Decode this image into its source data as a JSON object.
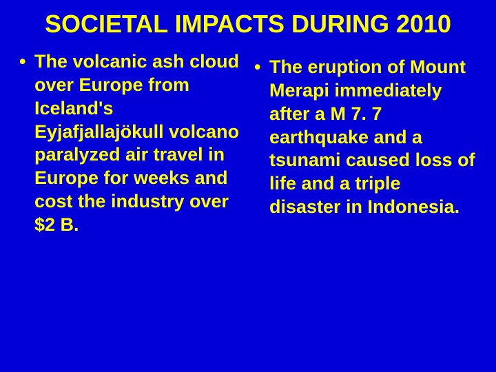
{
  "background_color": "#0000d6",
  "text_color": "#ffff00",
  "title_fontsize": 36,
  "body_fontsize": 27,
  "font_family": "Arial",
  "font_weight": "bold",
  "title": "SOCIETAL IMPACTS DURING 2010",
  "columns": {
    "left": {
      "bullet_marker": "•",
      "text": "The volcanic ash cloud over Europe from Iceland's Eyjafjallajökull volcano paralyzed air travel in Europe for weeks and cost the industry over $2 B."
    },
    "right": {
      "bullet_marker": "•",
      "text": "The eruption of Mount Merapi immediately after a M 7. 7 earthquake and a tsunami caused loss of  life and a triple disaster in Indonesia."
    }
  }
}
